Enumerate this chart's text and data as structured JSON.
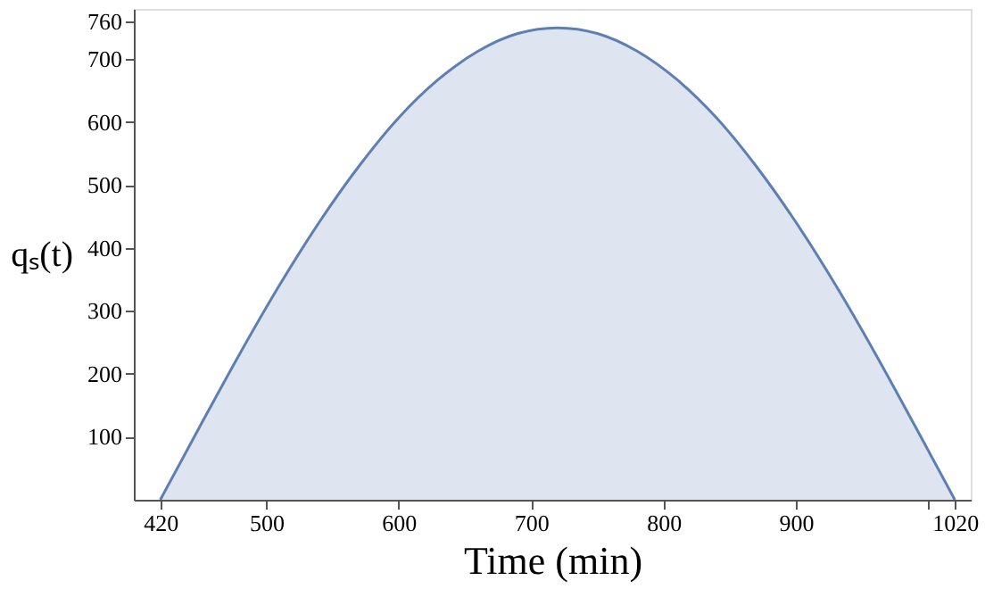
{
  "chart_data": {
    "type": "area",
    "xlabel": "Time (min)",
    "ylabel": "qₛ(t)",
    "x": [
      420,
      450,
      480,
      510,
      540,
      570,
      600,
      630,
      660,
      690,
      720,
      750,
      780,
      810,
      840,
      870,
      900,
      930,
      960,
      990,
      1020
    ],
    "series": [
      {
        "color": "#5d7fb4",
        "values": [
          0,
          117,
          232,
          341,
          441,
          530,
          607,
          668,
          713,
          741,
          750,
          741,
          713,
          668,
          607,
          530,
          441,
          341,
          232,
          117,
          0
        ]
      }
    ],
    "xlim": [
      400,
      1032
    ],
    "ylim": [
      0,
      780
    ],
    "xticks": [
      420,
      500,
      600,
      700,
      800,
      900,
      {
        "value": 1000,
        "label": null
      },
      1020
    ],
    "yticks": [
      100,
      200,
      300,
      400,
      500,
      600,
      700,
      760
    ],
    "grid": false
  }
}
